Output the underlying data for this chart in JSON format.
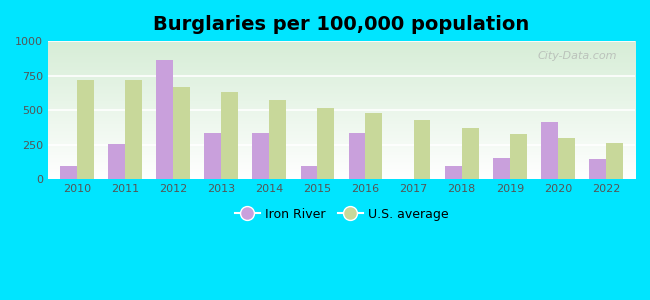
{
  "title": "Burglaries per 100,000 population",
  "years": [
    2010,
    2011,
    2012,
    2013,
    2014,
    2015,
    2016,
    2017,
    2018,
    2019,
    2020,
    2022
  ],
  "iron_river": [
    100,
    258,
    866,
    333,
    333,
    100,
    333,
    0,
    100,
    158,
    416,
    150
  ],
  "us_average": [
    716,
    716,
    670,
    630,
    575,
    520,
    480,
    430,
    370,
    330,
    300,
    260
  ],
  "iron_river_color": "#c9a0dc",
  "us_average_color": "#c8d89a",
  "background_outer": "#00e5ff",
  "background_inner_top": "#d6ecd6",
  "background_inner_bottom": "#ffffff",
  "ylim": [
    0,
    1000
  ],
  "yticks": [
    0,
    250,
    500,
    750,
    1000
  ],
  "bar_width": 0.35,
  "title_fontsize": 14,
  "legend_labels": [
    "Iron River",
    "U.S. average"
  ],
  "watermark": "City-Data.com"
}
